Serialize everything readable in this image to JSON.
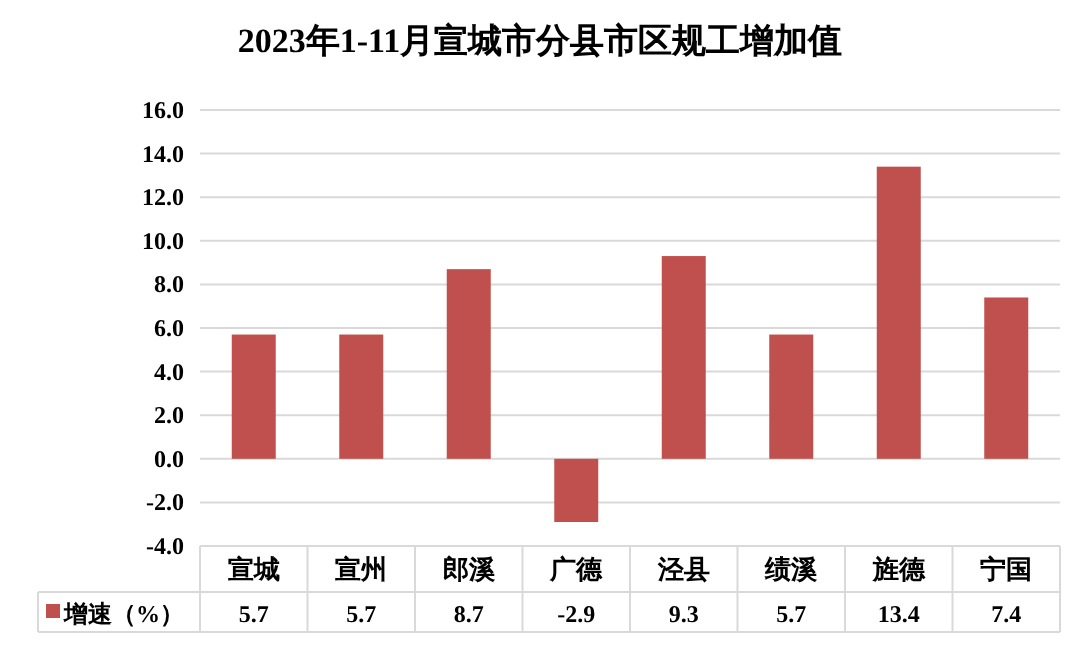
{
  "chart_data": {
    "type": "bar",
    "title": "2023年1-11月宣城市分县市区规工增加值",
    "categories": [
      "宣城",
      "宣州",
      "郎溪",
      "广德",
      "泾县",
      "绩溪",
      "旌德",
      "宁国"
    ],
    "series": [
      {
        "name": "增速（%）",
        "color": "#c0504d",
        "values": [
          5.7,
          5.7,
          8.7,
          -2.9,
          9.3,
          5.7,
          13.4,
          7.4
        ]
      }
    ],
    "ylim": [
      -4,
      16
    ],
    "yticks": [
      {
        "value": -4,
        "label": "-4.0"
      },
      {
        "value": -2,
        "label": "-2.0"
      },
      {
        "value": 0,
        "label": "0.0"
      },
      {
        "value": 2,
        "label": "2.0"
      },
      {
        "value": 4,
        "label": "4.0"
      },
      {
        "value": 6,
        "label": "6.0"
      },
      {
        "value": 8,
        "label": "8.0"
      },
      {
        "value": 10,
        "label": "10.0"
      },
      {
        "value": 12,
        "label": "12.0"
      },
      {
        "value": 14,
        "label": "14.0"
      },
      {
        "value": 16,
        "label": "16.0"
      }
    ],
    "grid": "y",
    "data_labels": true,
    "legend": "bottom"
  }
}
